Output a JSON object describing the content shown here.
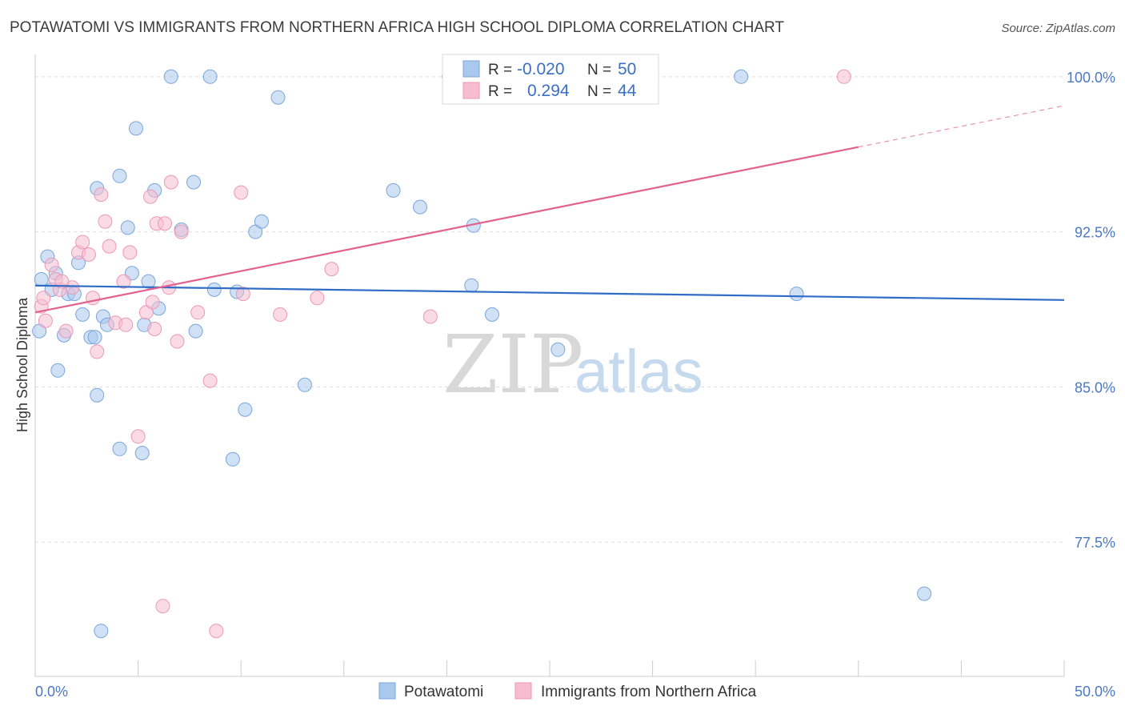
{
  "chart_data": {
    "type": "scatter",
    "title": "POTAWATOMI VS IMMIGRANTS FROM NORTHERN AFRICA HIGH SCHOOL DIPLOMA CORRELATION CHART",
    "source": "Source: ZipAtlas.com",
    "ylabel": "High School Diploma",
    "xlim": [
      0,
      50
    ],
    "ylim": [
      71.0,
      101.0
    ],
    "y_ticks": [
      {
        "value": 100.0,
        "label": "100.0%"
      },
      {
        "value": 92.5,
        "label": "92.5%"
      },
      {
        "value": 85.0,
        "label": "85.0%"
      },
      {
        "value": 77.5,
        "label": "77.5%"
      }
    ],
    "x_tick_labels": {
      "min": "0.0%",
      "max": "50.0%"
    },
    "x_minor_ticks": [
      0,
      5,
      10,
      15,
      20,
      25,
      30,
      35,
      40,
      45,
      50
    ],
    "grid": true,
    "legend_position": "top-center",
    "watermark": {
      "zip": "ZIP",
      "atlas": "atlas"
    },
    "series": [
      {
        "name": "Potawatomi",
        "color": "#a9c8ee",
        "stroke": "#7aa6dc",
        "line_color": "#2f6cc6",
        "r_label": "R =",
        "r_value": "-0.020",
        "n_label": "N =",
        "n_value": "50",
        "trend": {
          "x0": 0,
          "y0": 89.9,
          "x1": 50,
          "y1": 89.2
        },
        "points": [
          [
            0.2,
            87.7
          ],
          [
            0.3,
            90.2
          ],
          [
            0.6,
            91.3
          ],
          [
            0.8,
            89.7
          ],
          [
            1.0,
            90.5
          ],
          [
            1.1,
            85.8
          ],
          [
            1.4,
            87.5
          ],
          [
            1.6,
            89.5
          ],
          [
            1.9,
            89.5
          ],
          [
            2.1,
            91.0
          ],
          [
            2.3,
            88.5
          ],
          [
            2.7,
            87.4
          ],
          [
            2.9,
            87.4
          ],
          [
            3.0,
            94.6
          ],
          [
            3.0,
            84.6
          ],
          [
            3.3,
            88.4
          ],
          [
            3.5,
            88.0
          ],
          [
            4.1,
            95.2
          ],
          [
            4.1,
            82.0
          ],
          [
            4.5,
            92.7
          ],
          [
            4.7,
            90.5
          ],
          [
            4.9,
            97.5
          ],
          [
            5.2,
            81.8
          ],
          [
            5.3,
            88.0
          ],
          [
            5.5,
            90.1
          ],
          [
            5.8,
            94.5
          ],
          [
            6.0,
            88.8
          ],
          [
            6.6,
            100.0
          ],
          [
            7.1,
            92.6
          ],
          [
            7.7,
            94.9
          ],
          [
            7.8,
            87.7
          ],
          [
            8.5,
            100.0
          ],
          [
            8.7,
            89.7
          ],
          [
            9.6,
            81.5
          ],
          [
            9.8,
            89.6
          ],
          [
            10.2,
            83.9
          ],
          [
            10.7,
            92.5
          ],
          [
            11.0,
            93.0
          ],
          [
            11.8,
            99.0
          ],
          [
            13.1,
            85.1
          ],
          [
            17.4,
            94.5
          ],
          [
            18.7,
            93.7
          ],
          [
            21.2,
            89.9
          ],
          [
            21.3,
            92.8
          ],
          [
            22.2,
            88.5
          ],
          [
            25.4,
            86.8
          ],
          [
            34.3,
            100.0
          ],
          [
            37.0,
            89.5
          ],
          [
            43.2,
            75.0
          ],
          [
            3.2,
            73.2
          ]
        ]
      },
      {
        "name": "Immigrants from Northern Africa",
        "color": "#f6bdd0",
        "stroke": "#ec98b6",
        "line_color": "#e2628e",
        "r_label": "R =",
        "r_value": "0.294",
        "n_label": "N =",
        "n_value": "44",
        "trend": {
          "x0": 0,
          "y0": 88.6,
          "x1": 40,
          "y1": 96.6
        },
        "trend_dashed": {
          "x0": 40,
          "y0": 96.6,
          "x1": 50,
          "y1": 98.6
        },
        "points": [
          [
            0.3,
            88.9
          ],
          [
            0.4,
            89.3
          ],
          [
            0.5,
            88.2
          ],
          [
            0.8,
            90.9
          ],
          [
            1.0,
            90.2
          ],
          [
            1.2,
            89.7
          ],
          [
            1.5,
            87.7
          ],
          [
            1.8,
            89.8
          ],
          [
            2.1,
            91.5
          ],
          [
            2.3,
            92.0
          ],
          [
            2.6,
            91.4
          ],
          [
            2.8,
            89.3
          ],
          [
            3.0,
            86.7
          ],
          [
            3.2,
            94.3
          ],
          [
            3.4,
            93.0
          ],
          [
            3.6,
            91.8
          ],
          [
            3.9,
            88.1
          ],
          [
            4.3,
            90.1
          ],
          [
            4.6,
            91.5
          ],
          [
            5.0,
            82.6
          ],
          [
            5.4,
            88.6
          ],
          [
            5.6,
            94.2
          ],
          [
            5.7,
            89.1
          ],
          [
            5.8,
            87.8
          ],
          [
            5.9,
            92.9
          ],
          [
            6.2,
            74.4
          ],
          [
            6.3,
            92.9
          ],
          [
            6.5,
            89.8
          ],
          [
            6.6,
            94.9
          ],
          [
            7.1,
            92.5
          ],
          [
            7.9,
            88.6
          ],
          [
            8.5,
            85.3
          ],
          [
            8.8,
            73.2
          ],
          [
            10.0,
            94.4
          ],
          [
            10.1,
            89.5
          ],
          [
            11.9,
            88.5
          ],
          [
            13.7,
            89.3
          ],
          [
            14.4,
            90.7
          ],
          [
            19.2,
            88.4
          ],
          [
            20.1,
            100.0
          ],
          [
            39.3,
            100.0
          ],
          [
            1.3,
            90.1
          ],
          [
            4.4,
            88.0
          ],
          [
            6.9,
            87.2
          ]
        ]
      }
    ]
  }
}
